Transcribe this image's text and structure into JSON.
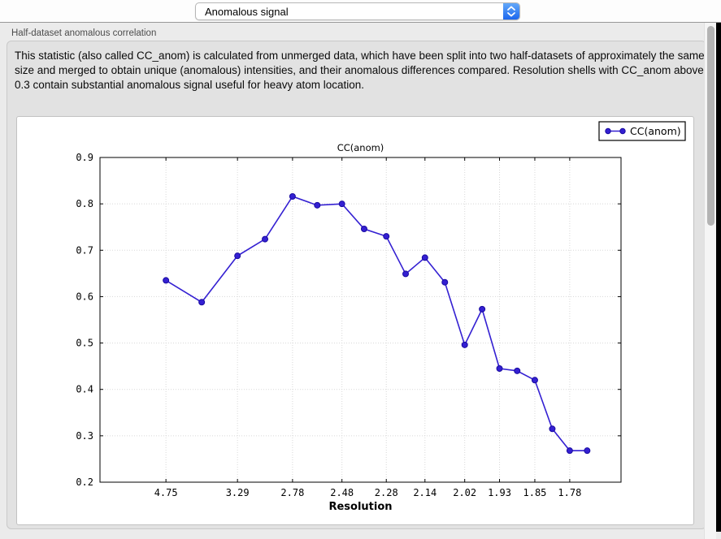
{
  "toolbar": {
    "plot_selector": {
      "value": "Anomalous signal"
    }
  },
  "section": {
    "label": "Half-dataset anomalous correlation",
    "description": "This statistic (also called CC_anom) is calculated from unmerged data, which have been split into two half-datasets of approximately the same size and merged to obtain unique (anomalous) intensities, and their anomalous differences compared.  Resolution shells with CC_anom above 0.3 contain substantial anomalous signal useful for heavy atom location."
  },
  "chart_data": {
    "type": "line",
    "title": "CC(anom)",
    "xlabel": "Resolution",
    "ylabel": "",
    "legend": [
      "CC(anom)"
    ],
    "legend_position": "top-right-outside",
    "grid": true,
    "ylim": [
      0.2,
      0.9
    ],
    "yticks": [
      0.2,
      0.3,
      0.4,
      0.5,
      0.6,
      0.7,
      0.8,
      0.9
    ],
    "x_axis_scale": "linear in 1/d^2 (resolution in Angstrom)",
    "x_range_inv_d_sq": [
      0.0,
      0.3501
    ],
    "xticks": [
      {
        "label": "4.75",
        "inv_d_sq": 0.04432
      },
      {
        "label": "3.29",
        "inv_d_sq": 0.09239
      },
      {
        "label": "2.78",
        "inv_d_sq": 0.12938
      },
      {
        "label": "2.48",
        "inv_d_sq": 0.16259
      },
      {
        "label": "2.28",
        "inv_d_sq": 0.19238
      },
      {
        "label": "2.14",
        "inv_d_sq": 0.21836
      },
      {
        "label": "2.02",
        "inv_d_sq": 0.24507
      },
      {
        "label": "1.93",
        "inv_d_sq": 0.26846
      },
      {
        "label": "1.85",
        "inv_d_sq": 0.29218
      },
      {
        "label": "1.78",
        "inv_d_sq": 0.31563
      }
    ],
    "series": [
      {
        "name": "CC(anom)",
        "color": "#3420d2",
        "marker_edge": "#190ba0",
        "points": [
          {
            "d": "4.75",
            "inv_d_sq": 0.04432,
            "y": 0.635
          },
          {
            "d": "3.82",
            "inv_d_sq": 0.06836,
            "y": 0.588
          },
          {
            "d": "3.29",
            "inv_d_sq": 0.09239,
            "y": 0.688
          },
          {
            "d": "3.00",
            "inv_d_sq": 0.11089,
            "y": 0.724
          },
          {
            "d": "2.78",
            "inv_d_sq": 0.12938,
            "y": 0.816
          },
          {
            "d": "2.62",
            "inv_d_sq": 0.14599,
            "y": 0.797
          },
          {
            "d": "2.48",
            "inv_d_sq": 0.16259,
            "y": 0.8
          },
          {
            "d": "2.37",
            "inv_d_sq": 0.17749,
            "y": 0.746
          },
          {
            "d": "2.28",
            "inv_d_sq": 0.19238,
            "y": 0.73
          },
          {
            "d": "2.21",
            "inv_d_sq": 0.20537,
            "y": 0.649
          },
          {
            "d": "2.14",
            "inv_d_sq": 0.21836,
            "y": 0.684
          },
          {
            "d": "2.08",
            "inv_d_sq": 0.23172,
            "y": 0.631
          },
          {
            "d": "2.02",
            "inv_d_sq": 0.24507,
            "y": 0.496
          },
          {
            "d": "1.97",
            "inv_d_sq": 0.25677,
            "y": 0.573
          },
          {
            "d": "1.93",
            "inv_d_sq": 0.26846,
            "y": 0.445
          },
          {
            "d": "1.89",
            "inv_d_sq": 0.28032,
            "y": 0.44
          },
          {
            "d": "1.85",
            "inv_d_sq": 0.29218,
            "y": 0.42
          },
          {
            "d": "1.81",
            "inv_d_sq": 0.30391,
            "y": 0.315
          },
          {
            "d": "1.78",
            "inv_d_sq": 0.31563,
            "y": 0.268
          },
          {
            "d": "1.75",
            "inv_d_sq": 0.32736,
            "y": 0.268
          }
        ]
      }
    ],
    "threshold_note": "CC_anom above 0.3 indicates substantial anomalous signal"
  },
  "colors": {
    "accent_blue_top": "#63a8f9",
    "accent_blue_bottom": "#1c67ee",
    "series_line": "#3420d2",
    "panel_bg": "#ffffff",
    "window_bg": "#ebebeb",
    "groupbox_bg": "#e2e2e2"
  }
}
